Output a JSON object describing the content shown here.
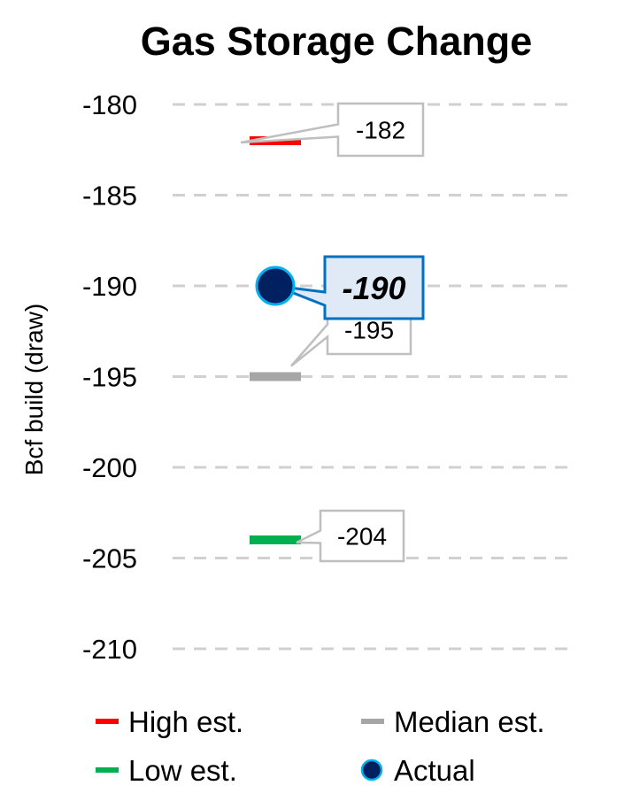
{
  "chart_data": {
    "type": "scatter",
    "title": "Gas Storage Change",
    "ylabel": "Bcf build (draw)",
    "ylim": [
      -210,
      -180
    ],
    "yticks": [
      -180,
      -185,
      -190,
      -195,
      -200,
      -205,
      -210
    ],
    "ytick_labels": [
      "-180",
      "-185",
      "-190",
      "-195",
      "-200",
      "-205",
      "-210"
    ],
    "grid": "horizontal dashed",
    "legend_placement": "bottom",
    "series": [
      {
        "name": "High est.",
        "value": -182,
        "label": "-182",
        "marker": "dash",
        "color": "#ff0000"
      },
      {
        "name": "Median est.",
        "value": -195,
        "label": "-195",
        "marker": "dash",
        "color": "#a6a6a6"
      },
      {
        "name": "Low est.",
        "value": -204,
        "label": "-204",
        "marker": "dash",
        "color": "#00b050"
      },
      {
        "name": "Actual",
        "value": -190,
        "label": "-190",
        "marker": "circle",
        "color": "#002060",
        "edge_color": "#00b0f0"
      }
    ]
  }
}
